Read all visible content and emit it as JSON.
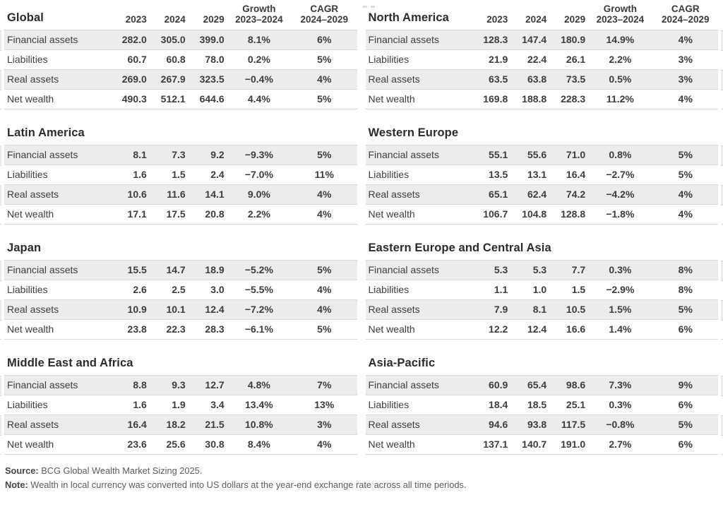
{
  "columns": {
    "years": [
      "2023",
      "2024",
      "2029"
    ],
    "growth": [
      "Growth",
      "2023–2024"
    ],
    "cagr": [
      "CAGR",
      "2024–2029"
    ]
  },
  "row_labels": [
    "Financial assets",
    "Liabilities",
    "Real assets",
    "Net wealth"
  ],
  "tables": [
    {
      "title": "Global",
      "has_header": true,
      "rows": [
        [
          "282.0",
          "305.0",
          "399.0",
          "8.1%",
          "6%"
        ],
        [
          "60.7",
          "60.8",
          "78.0",
          "0.2%",
          "5%"
        ],
        [
          "269.0",
          "267.9",
          "323.5",
          "−0.4%",
          "4%"
        ],
        [
          "490.3",
          "512.1",
          "644.6",
          "4.4%",
          "5%"
        ]
      ]
    },
    {
      "title": "North America",
      "has_header": true,
      "rows": [
        [
          "128.3",
          "147.4",
          "180.9",
          "14.9%",
          "4%"
        ],
        [
          "21.9",
          "22.4",
          "26.1",
          "2.2%",
          "3%"
        ],
        [
          "63.5",
          "63.8",
          "73.5",
          "0.5%",
          "3%"
        ],
        [
          "169.8",
          "188.8",
          "228.3",
          "11.2%",
          "4%"
        ]
      ]
    },
    {
      "title": "Latin America",
      "has_header": false,
      "rows": [
        [
          "8.1",
          "7.3",
          "9.2",
          "−9.3%",
          "5%"
        ],
        [
          "1.6",
          "1.5",
          "2.4",
          "−7.0%",
          "11%"
        ],
        [
          "10.6",
          "11.6",
          "14.1",
          "9.0%",
          "4%"
        ],
        [
          "17.1",
          "17.5",
          "20.8",
          "2.2%",
          "4%"
        ]
      ]
    },
    {
      "title": "Western Europe",
      "has_header": false,
      "rows": [
        [
          "55.1",
          "55.6",
          "71.0",
          "0.8%",
          "5%"
        ],
        [
          "13.5",
          "13.1",
          "16.4",
          "−2.7%",
          "5%"
        ],
        [
          "65.1",
          "62.4",
          "74.2",
          "−4.2%",
          "4%"
        ],
        [
          "106.7",
          "104.8",
          "128.8",
          "−1.8%",
          "4%"
        ]
      ]
    },
    {
      "title": "Japan",
      "has_header": false,
      "rows": [
        [
          "15.5",
          "14.7",
          "18.9",
          "−5.2%",
          "5%"
        ],
        [
          "2.6",
          "2.5",
          "3.0",
          "−5.5%",
          "4%"
        ],
        [
          "10.9",
          "10.1",
          "12.4",
          "−7.2%",
          "4%"
        ],
        [
          "23.8",
          "22.3",
          "28.3",
          "−6.1%",
          "5%"
        ]
      ]
    },
    {
      "title": "Eastern Europe and Central Asia",
      "has_header": false,
      "rows": [
        [
          "5.3",
          "5.3",
          "7.7",
          "0.3%",
          "8%"
        ],
        [
          "1.1",
          "1.0",
          "1.5",
          "−2.9%",
          "8%"
        ],
        [
          "7.9",
          "8.1",
          "10.5",
          "1.5%",
          "5%"
        ],
        [
          "12.2",
          "12.4",
          "16.6",
          "1.4%",
          "6%"
        ]
      ]
    },
    {
      "title": "Middle East and Africa",
      "has_header": false,
      "rows": [
        [
          "8.8",
          "9.3",
          "12.7",
          "4.8%",
          "7%"
        ],
        [
          "1.6",
          "1.9",
          "3.4",
          "13.4%",
          "13%"
        ],
        [
          "16.4",
          "18.2",
          "21.5",
          "10.8%",
          "3%"
        ],
        [
          "23.6",
          "25.6",
          "30.8",
          "8.4%",
          "4%"
        ]
      ]
    },
    {
      "title": "Asia-Pacific",
      "has_header": false,
      "rows": [
        [
          "60.9",
          "65.4",
          "98.6",
          "7.3%",
          "9%"
        ],
        [
          "18.4",
          "18.5",
          "25.1",
          "0.3%",
          "6%"
        ],
        [
          "94.6",
          "93.8",
          "117.5",
          "−0.8%",
          "5%"
        ],
        [
          "137.1",
          "140.7",
          "191.0",
          "2.7%",
          "6%"
        ]
      ]
    }
  ],
  "footer": {
    "source_label": "Source:",
    "source_text": "BCG Global Wealth Market Sizing 2025.",
    "note_label": "Note:",
    "note_text": "Wealth in local currency was converted into US dollars at the year-end exchange rate across all time periods."
  },
  "colors": {
    "stripe": "#ececec",
    "row_border": "#d9d9d9",
    "body_text": "#3d3d3d",
    "title_text": "#2b2b2b",
    "footer_text": "#5c5c5c"
  },
  "chart_data": {
    "type": "table",
    "columns": [
      "2023",
      "2024",
      "2029",
      "Growth 2023–2024",
      "CAGR 2024–2029"
    ],
    "row_labels": [
      "Financial assets",
      "Liabilities",
      "Real assets",
      "Net wealth"
    ],
    "regions": [
      {
        "name": "Global",
        "values": [
          [
            282.0,
            305.0,
            399.0,
            "8.1%",
            "6%"
          ],
          [
            60.7,
            60.8,
            78.0,
            "0.2%",
            "5%"
          ],
          [
            269.0,
            267.9,
            323.5,
            "−0.4%",
            "4%"
          ],
          [
            490.3,
            512.1,
            644.6,
            "4.4%",
            "5%"
          ]
        ]
      },
      {
        "name": "North America",
        "values": [
          [
            128.3,
            147.4,
            180.9,
            "14.9%",
            "4%"
          ],
          [
            21.9,
            22.4,
            26.1,
            "2.2%",
            "3%"
          ],
          [
            63.5,
            63.8,
            73.5,
            "0.5%",
            "3%"
          ],
          [
            169.8,
            188.8,
            228.3,
            "11.2%",
            "4%"
          ]
        ]
      },
      {
        "name": "Latin America",
        "values": [
          [
            8.1,
            7.3,
            9.2,
            "−9.3%",
            "5%"
          ],
          [
            1.6,
            1.5,
            2.4,
            "−7.0%",
            "11%"
          ],
          [
            10.6,
            11.6,
            14.1,
            "9.0%",
            "4%"
          ],
          [
            17.1,
            17.5,
            20.8,
            "2.2%",
            "4%"
          ]
        ]
      },
      {
        "name": "Western Europe",
        "values": [
          [
            55.1,
            55.6,
            71.0,
            "0.8%",
            "5%"
          ],
          [
            13.5,
            13.1,
            16.4,
            "−2.7%",
            "5%"
          ],
          [
            65.1,
            62.4,
            74.2,
            "−4.2%",
            "4%"
          ],
          [
            106.7,
            104.8,
            128.8,
            "−1.8%",
            "4%"
          ]
        ]
      },
      {
        "name": "Japan",
        "values": [
          [
            15.5,
            14.7,
            18.9,
            "−5.2%",
            "5%"
          ],
          [
            2.6,
            2.5,
            3.0,
            "−5.5%",
            "4%"
          ],
          [
            10.9,
            10.1,
            12.4,
            "−7.2%",
            "4%"
          ],
          [
            23.8,
            22.3,
            28.3,
            "−6.1%",
            "5%"
          ]
        ]
      },
      {
        "name": "Eastern Europe and Central Asia",
        "values": [
          [
            5.3,
            5.3,
            7.7,
            "0.3%",
            "8%"
          ],
          [
            1.1,
            1.0,
            1.5,
            "−2.9%",
            "8%"
          ],
          [
            7.9,
            8.1,
            10.5,
            "1.5%",
            "5%"
          ],
          [
            12.2,
            12.4,
            16.6,
            "1.4%",
            "6%"
          ]
        ]
      },
      {
        "name": "Middle East and Africa",
        "values": [
          [
            8.8,
            9.3,
            12.7,
            "4.8%",
            "7%"
          ],
          [
            1.6,
            1.9,
            3.4,
            "13.4%",
            "13%"
          ],
          [
            16.4,
            18.2,
            21.5,
            "10.8%",
            "3%"
          ],
          [
            23.6,
            25.6,
            30.8,
            "8.4%",
            "4%"
          ]
        ]
      },
      {
        "name": "Asia-Pacific",
        "values": [
          [
            60.9,
            65.4,
            98.6,
            "7.3%",
            "9%"
          ],
          [
            18.4,
            18.5,
            25.1,
            "0.3%",
            "6%"
          ],
          [
            94.6,
            93.8,
            117.5,
            "−0.8%",
            "5%"
          ],
          [
            137.1,
            140.7,
            191.0,
            "2.7%",
            "6%"
          ]
        ]
      }
    ]
  }
}
